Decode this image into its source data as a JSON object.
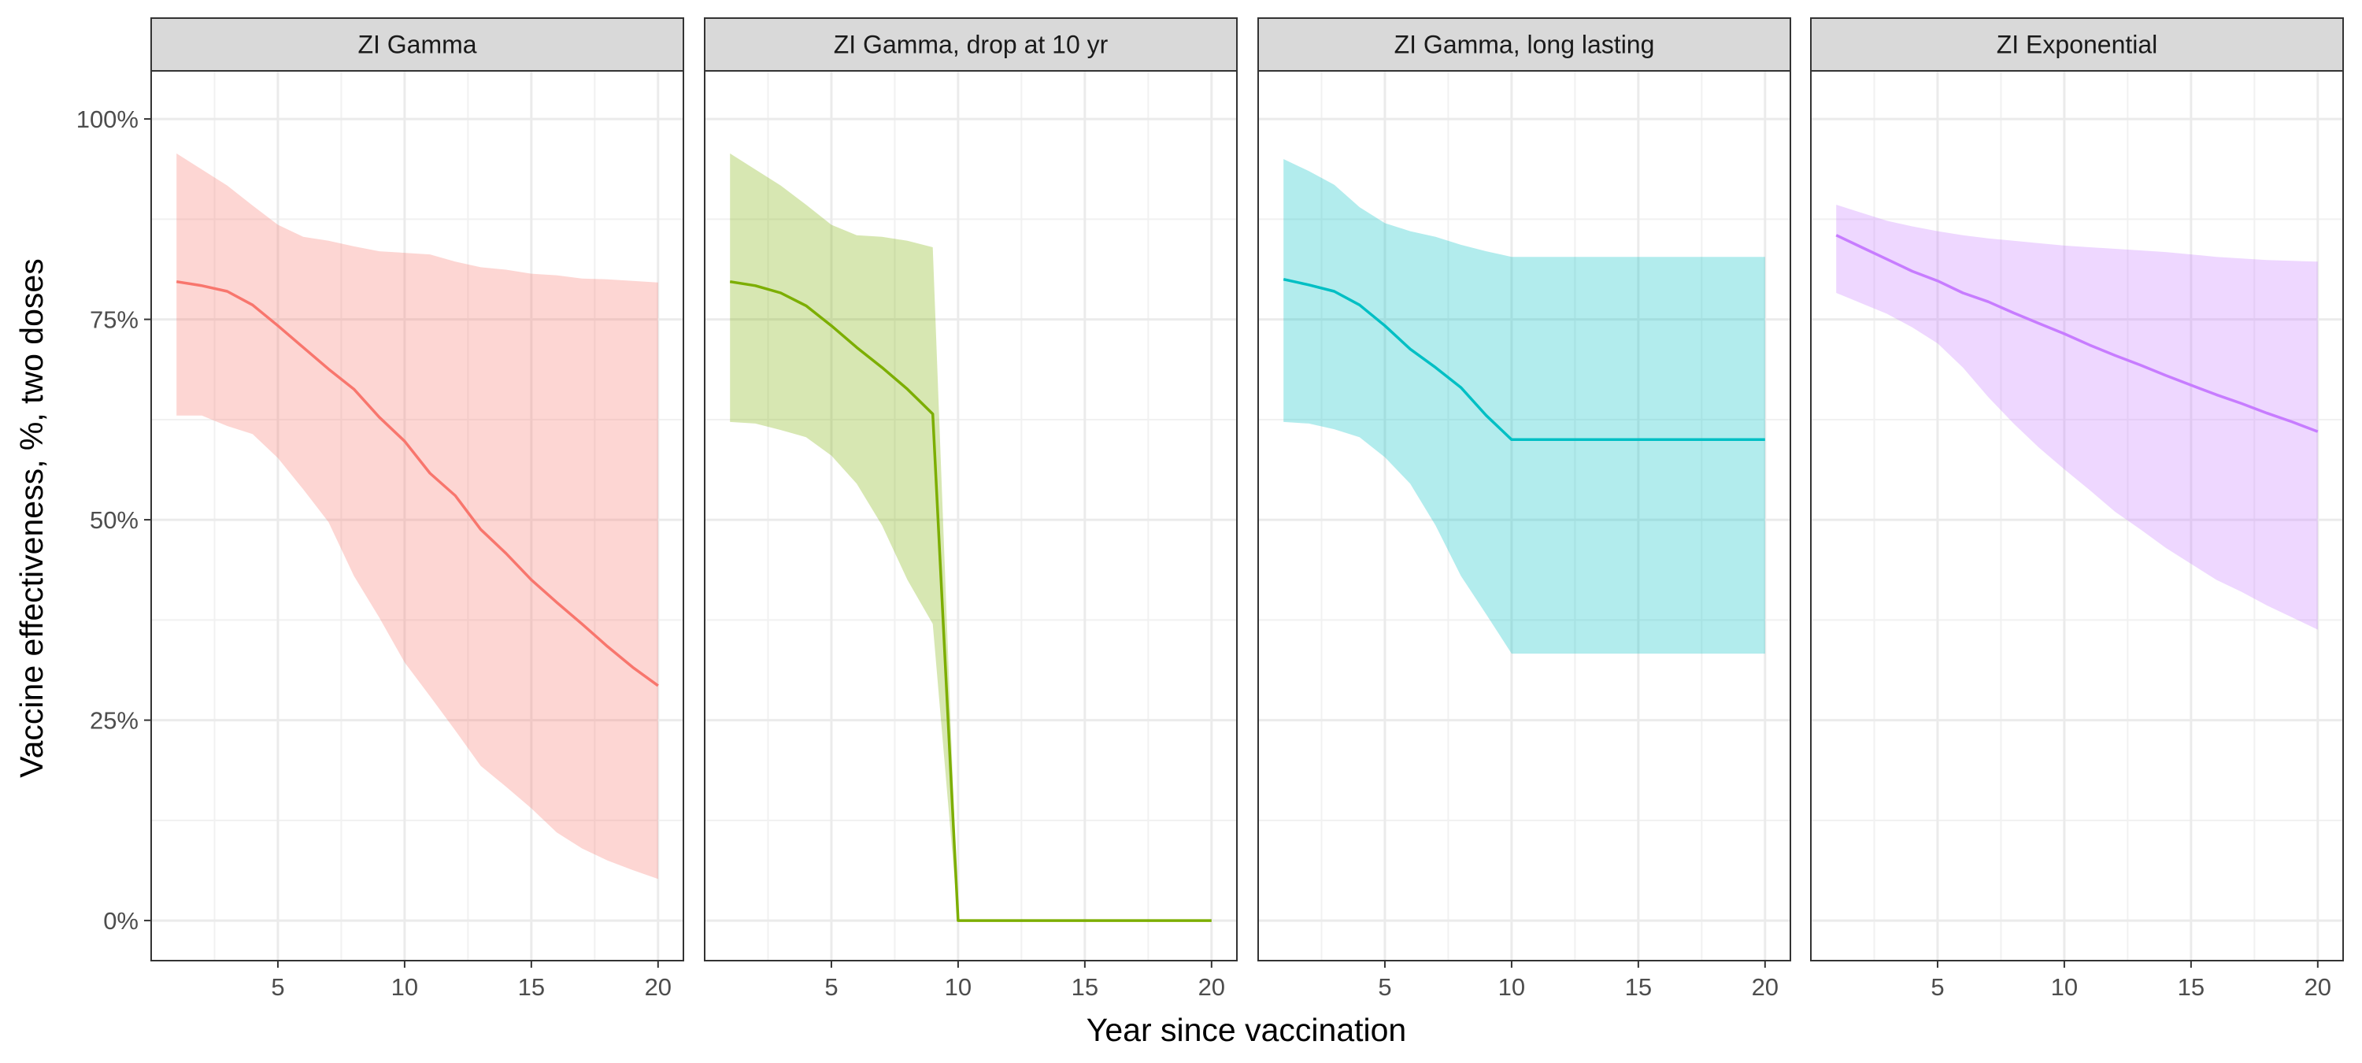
{
  "chart_data": {
    "type": "area",
    "xlabel": "Year since vaccination",
    "ylabel": "Vaccine effectiveness, %, two doses",
    "xlim": [
      0,
      21
    ],
    "ylim": [
      -0.05,
      1.06
    ],
    "x_ticks": [
      5,
      10,
      15,
      20
    ],
    "y_ticks": [
      0,
      0.25,
      0.5,
      0.75,
      1.0
    ],
    "y_tick_labels": [
      "0%",
      "25%",
      "50%",
      "75%",
      "100%"
    ],
    "grid": true,
    "legend": "none",
    "panels": [
      {
        "title": "ZI Gamma",
        "color": "#F8766D",
        "x": [
          1,
          2,
          3,
          4,
          5,
          6,
          7,
          8,
          9,
          10,
          11,
          12,
          13,
          14,
          15,
          16,
          17,
          18,
          19,
          20
        ],
        "estimate": [
          0.797,
          0.792,
          0.785,
          0.768,
          0.742,
          0.715,
          0.688,
          0.663,
          0.628,
          0.598,
          0.558,
          0.53,
          0.488,
          0.458,
          0.425,
          0.397,
          0.37,
          0.342,
          0.316,
          0.293
        ],
        "lower": [
          0.63,
          0.63,
          0.617,
          0.607,
          0.577,
          0.538,
          0.497,
          0.43,
          0.378,
          0.322,
          0.28,
          0.237,
          0.193,
          0.167,
          0.14,
          0.11,
          0.09,
          0.075,
          0.063,
          0.052
        ],
        "upper": [
          0.957,
          0.937,
          0.917,
          0.892,
          0.868,
          0.853,
          0.848,
          0.841,
          0.835,
          0.833,
          0.831,
          0.822,
          0.815,
          0.812,
          0.807,
          0.805,
          0.801,
          0.8,
          0.798,
          0.796
        ]
      },
      {
        "title": "ZI Gamma, drop at 10 yr",
        "color": "#7CAE00",
        "x": [
          1,
          2,
          3,
          4,
          5,
          6,
          7,
          8,
          9,
          10,
          11,
          12,
          13,
          14,
          15,
          16,
          17,
          18,
          19,
          20
        ],
        "estimate": [
          0.797,
          0.792,
          0.783,
          0.767,
          0.742,
          0.715,
          0.69,
          0.663,
          0.632,
          0,
          0,
          0,
          0,
          0,
          0,
          0,
          0,
          0,
          0,
          0
        ],
        "lower": [
          0.622,
          0.62,
          0.612,
          0.603,
          0.58,
          0.545,
          0.493,
          0.425,
          0.37,
          0,
          0,
          0,
          0,
          0,
          0,
          0,
          0,
          0,
          0,
          0
        ],
        "upper": [
          0.957,
          0.937,
          0.917,
          0.893,
          0.868,
          0.855,
          0.853,
          0.848,
          0.84,
          0,
          0,
          0,
          0,
          0,
          0,
          0,
          0,
          0,
          0,
          0
        ]
      },
      {
        "title": "ZI Gamma, long lasting",
        "color": "#00BFC4",
        "x": [
          1,
          2,
          3,
          4,
          5,
          6,
          7,
          8,
          9,
          10,
          11,
          12,
          13,
          14,
          15,
          16,
          17,
          18,
          19,
          20
        ],
        "estimate": [
          0.8,
          0.793,
          0.785,
          0.768,
          0.742,
          0.713,
          0.69,
          0.665,
          0.63,
          0.6,
          0.6,
          0.6,
          0.6,
          0.6,
          0.6,
          0.6,
          0.6,
          0.6,
          0.6,
          0.6
        ],
        "lower": [
          0.622,
          0.62,
          0.613,
          0.603,
          0.578,
          0.545,
          0.493,
          0.43,
          0.382,
          0.333,
          0.333,
          0.333,
          0.333,
          0.333,
          0.333,
          0.333,
          0.333,
          0.333,
          0.333,
          0.333
        ],
        "upper": [
          0.95,
          0.935,
          0.918,
          0.89,
          0.87,
          0.86,
          0.853,
          0.843,
          0.835,
          0.828,
          0.828,
          0.828,
          0.828,
          0.828,
          0.828,
          0.828,
          0.828,
          0.828,
          0.828,
          0.828
        ]
      },
      {
        "title": "ZI Exponential",
        "color": "#C77CFF",
        "x": [
          1,
          2,
          3,
          4,
          5,
          6,
          7,
          8,
          9,
          10,
          11,
          12,
          13,
          14,
          15,
          16,
          17,
          18,
          19,
          20
        ],
        "estimate": [
          0.855,
          0.84,
          0.825,
          0.81,
          0.798,
          0.783,
          0.772,
          0.758,
          0.745,
          0.732,
          0.718,
          0.705,
          0.693,
          0.68,
          0.668,
          0.656,
          0.645,
          0.633,
          0.622,
          0.61
        ],
        "lower": [
          0.783,
          0.77,
          0.757,
          0.74,
          0.72,
          0.69,
          0.653,
          0.62,
          0.59,
          0.563,
          0.537,
          0.51,
          0.488,
          0.465,
          0.445,
          0.425,
          0.41,
          0.393,
          0.378,
          0.363
        ],
        "upper": [
          0.893,
          0.883,
          0.873,
          0.866,
          0.86,
          0.855,
          0.851,
          0.848,
          0.845,
          0.842,
          0.84,
          0.838,
          0.836,
          0.834,
          0.831,
          0.828,
          0.826,
          0.824,
          0.823,
          0.822
        ]
      }
    ]
  }
}
